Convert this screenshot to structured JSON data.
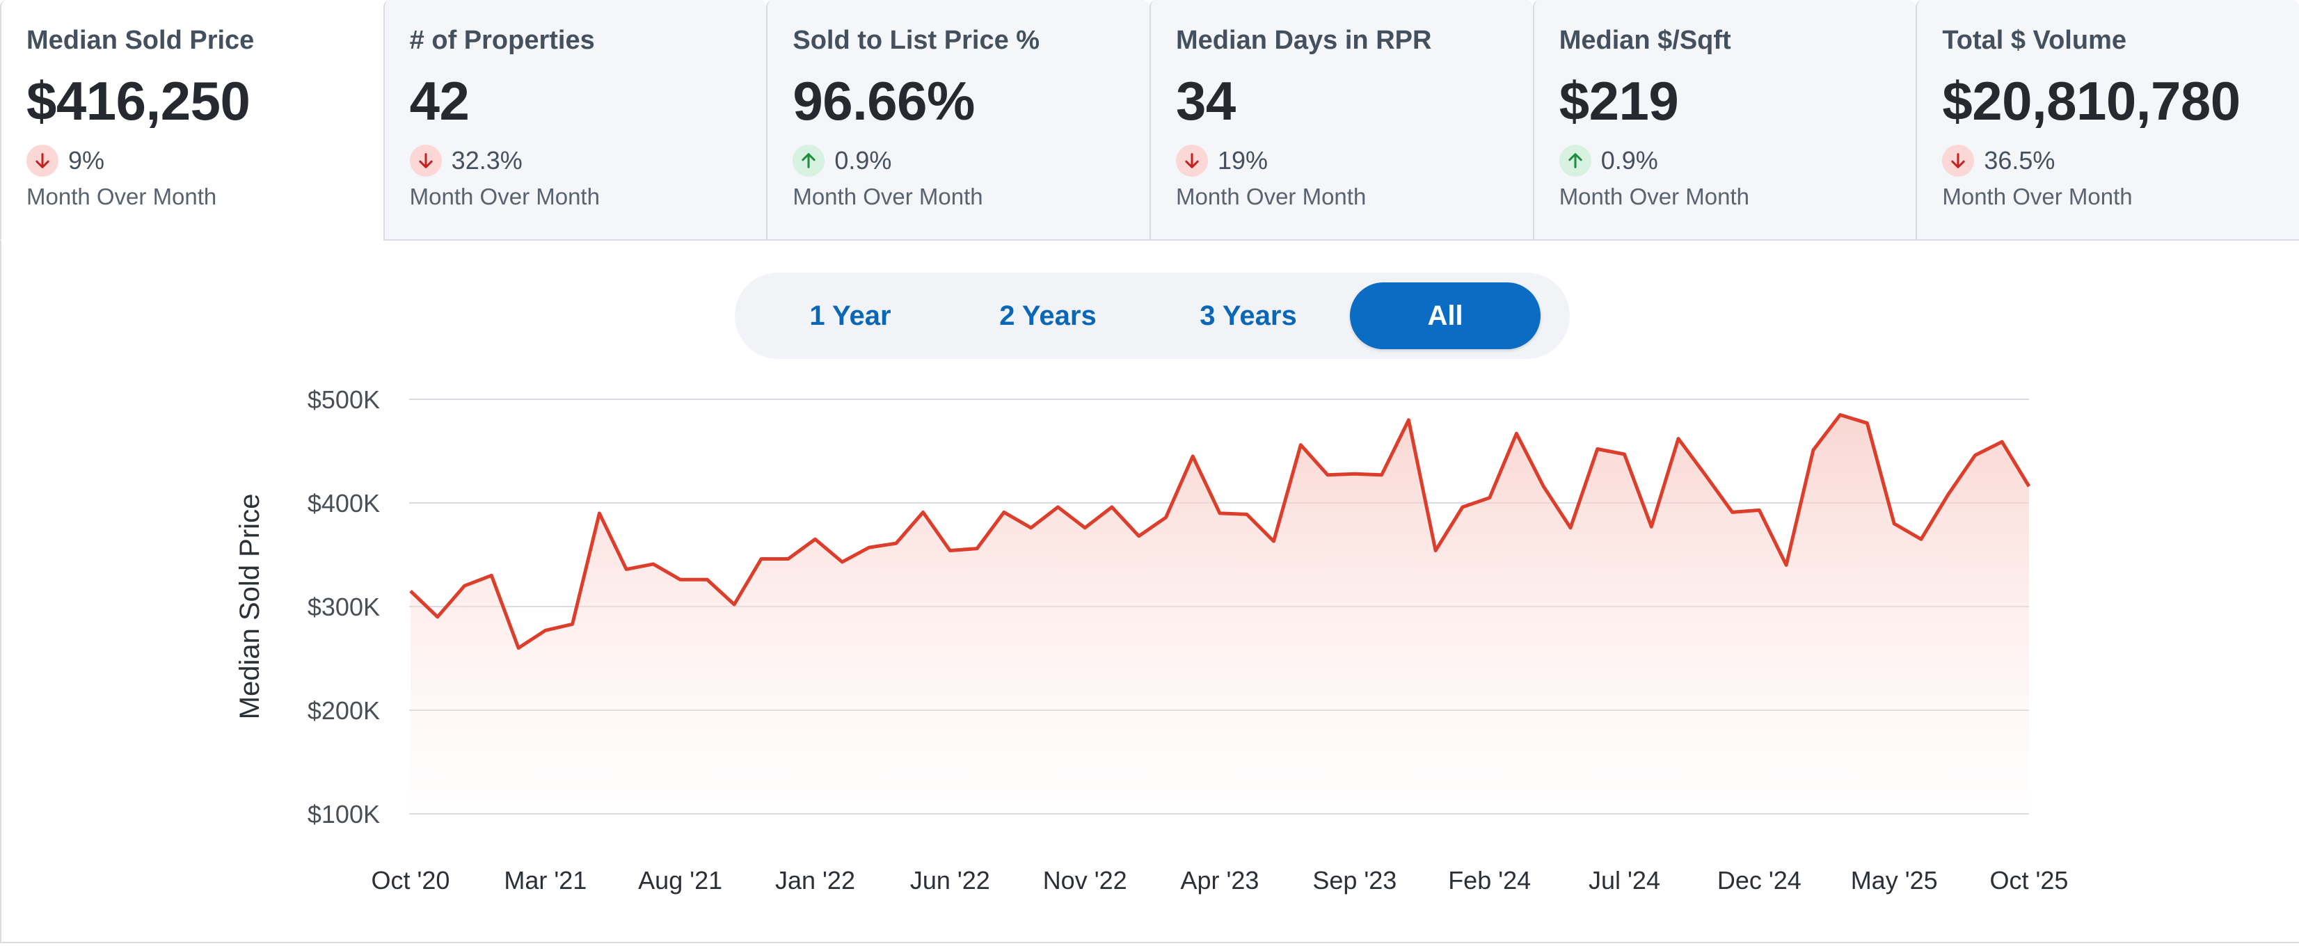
{
  "cards": [
    {
      "title": "Median Sold Price",
      "value": "$416,250",
      "direction": "down",
      "change": "9%",
      "period": "Month Over Month",
      "active": true
    },
    {
      "title": "# of Properties",
      "value": "42",
      "direction": "down",
      "change": "32.3%",
      "period": "Month Over Month",
      "active": false
    },
    {
      "title": "Sold to List Price %",
      "value": "96.66%",
      "direction": "up",
      "change": "0.9%",
      "period": "Month Over Month",
      "active": false
    },
    {
      "title": "Median Days in RPR",
      "value": "34",
      "direction": "down",
      "change": "19%",
      "period": "Month Over Month",
      "active": false
    },
    {
      "title": "Median $/Sqft",
      "value": "$219",
      "direction": "up",
      "change": "0.9%",
      "period": "Month Over Month",
      "active": false
    },
    {
      "title": "Total $ Volume",
      "value": "$20,810,780",
      "direction": "down",
      "change": "36.5%",
      "period": "Month Over Month",
      "active": false
    }
  ],
  "range_toggle": {
    "options": [
      "1 Year",
      "2 Years",
      "3 Years",
      "All"
    ],
    "selected": "All"
  },
  "colors": {
    "line": "#dd3e2c",
    "fill_top": "#f8c9c3",
    "grid": "#d9dde3",
    "toggle_selected": "#0a6cc2",
    "down_badge": "#fbd8d6",
    "up_badge": "#d7f2e0"
  },
  "chart_data": {
    "type": "area",
    "ylabel": "Median Sold Price",
    "ylim": [
      100000,
      500000
    ],
    "yticks": [
      100000,
      200000,
      300000,
      400000,
      500000
    ],
    "ytick_labels": [
      "$100K",
      "$200K",
      "$300K",
      "$400K",
      "$500K"
    ],
    "xtick_labels": [
      "Oct '20",
      "Mar '21",
      "Aug '21",
      "Jan '22",
      "Jun '22",
      "Nov '22",
      "Apr '23",
      "Sep '23",
      "Feb '24",
      "Jul '24",
      "Dec '24",
      "May '25",
      "Oct '25"
    ],
    "grid": true,
    "series": [
      {
        "values": [
          315000,
          290000,
          320000,
          330000,
          260000,
          277000,
          283000,
          390000,
          336000,
          341000,
          326000,
          326000,
          302000,
          346000,
          346000,
          365000,
          343000,
          357000,
          361000,
          391000,
          354000,
          356000,
          391000,
          376000,
          396000,
          376000,
          396000,
          368000,
          386000,
          445000,
          390000,
          389000,
          363000,
          456000,
          427000,
          428000,
          427000,
          480000,
          354000,
          396000,
          405000,
          467000,
          416000,
          376000,
          452000,
          447000,
          377000,
          462000,
          427000,
          391000,
          393000,
          340000,
          451000,
          485000,
          477000,
          380000,
          365000,
          408000,
          446000,
          459000,
          416000
        ]
      }
    ]
  }
}
